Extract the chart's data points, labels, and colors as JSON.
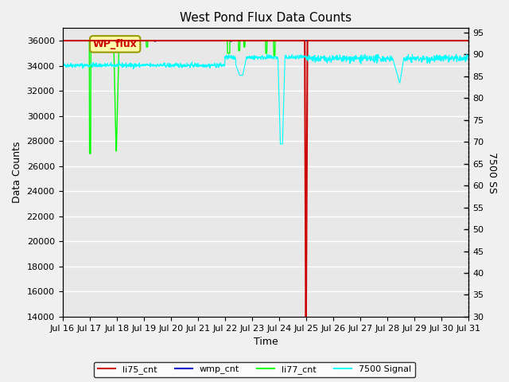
{
  "title": "West Pond Flux Data Counts",
  "xlabel": "Time",
  "ylabel_left": "Data Counts",
  "ylabel_right": "7500 SS",
  "ylim_left": [
    14000,
    37000
  ],
  "ylim_right": [
    30,
    96
  ],
  "xtick_labels": [
    "Jul 16",
    "Jul 17",
    "Jul 18",
    "Jul 19",
    "Jul 20",
    "Jul 21",
    "Jul 22",
    "Jul 23",
    "Jul 24",
    "Jul 25",
    "Jul 26",
    "Jul 27",
    "Jul 28",
    "Jul 29",
    "Jul 30",
    "Jul 31"
  ],
  "yticks_left": [
    14000,
    16000,
    18000,
    20000,
    22000,
    24000,
    26000,
    28000,
    30000,
    32000,
    34000,
    36000
  ],
  "yticks_right": [
    30,
    35,
    40,
    45,
    50,
    55,
    60,
    65,
    70,
    75,
    80,
    85,
    90,
    95
  ],
  "bg_color": "#e8e8e8",
  "li77_color": "#00ff00",
  "li75_color": "#cc0000",
  "wmp_color": "#0000cc",
  "signal_color": "#00ffff",
  "fig_bg_color": "#f0f0f0"
}
